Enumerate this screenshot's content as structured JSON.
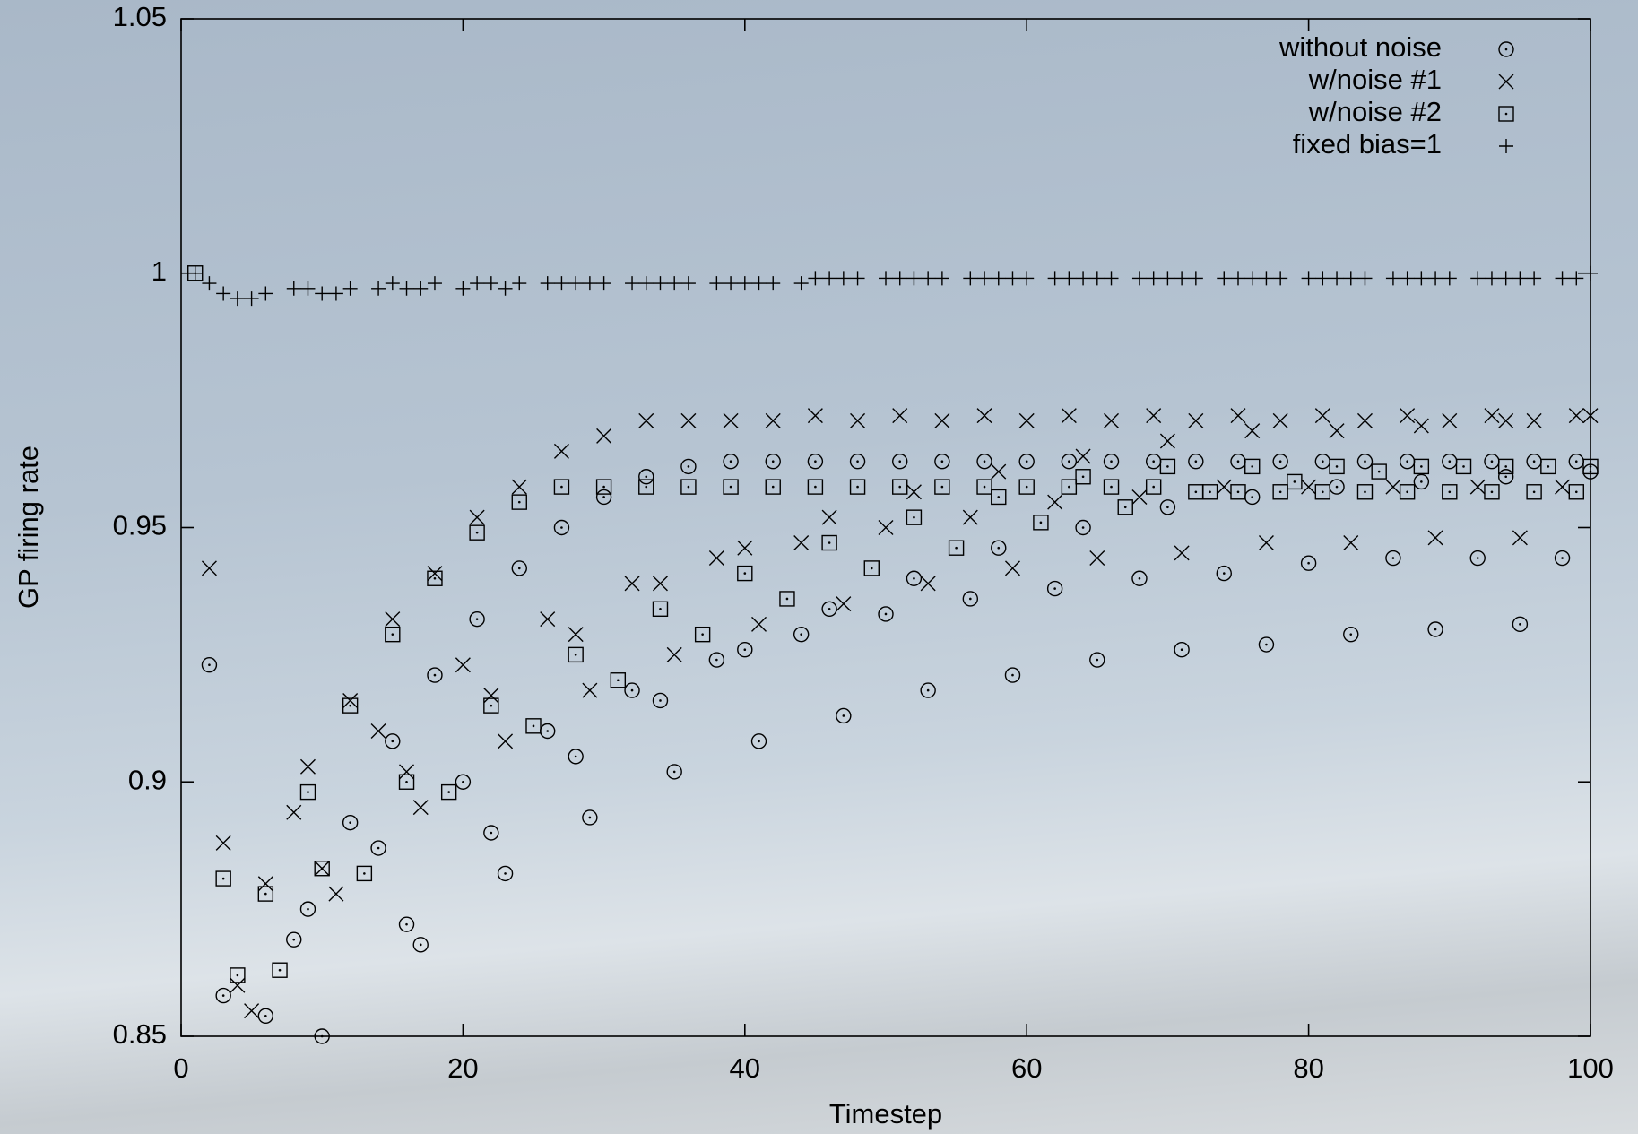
{
  "chart_data": {
    "type": "scatter",
    "xlabel": "Timestep",
    "ylabel": "GP firing rate",
    "xlim": [
      0,
      100
    ],
    "xticks": [
      0,
      20,
      40,
      60,
      80,
      100
    ],
    "ylim": [
      0.85,
      1.05
    ],
    "yticks": [
      0.85,
      0.9,
      0.95,
      1,
      1.05
    ],
    "legend_position": "upper right",
    "series": [
      {
        "name": "without noise",
        "color": "#000000",
        "marker": "circle",
        "x": [
          2,
          3,
          6,
          8,
          9,
          10,
          12,
          14,
          15,
          16,
          17,
          18,
          20,
          21,
          22,
          23,
          24,
          26,
          27,
          28,
          29,
          30,
          32,
          33,
          34,
          35,
          36,
          38,
          39,
          40,
          41,
          42,
          44,
          45,
          46,
          47,
          48,
          50,
          51,
          52,
          53,
          54,
          56,
          57,
          58,
          59,
          60,
          62,
          63,
          64,
          65,
          66,
          68,
          69,
          70,
          71,
          72,
          74,
          75,
          76,
          77,
          78,
          80,
          81,
          82,
          83,
          84,
          86,
          87,
          88,
          89,
          90,
          92,
          93,
          94,
          95,
          96,
          98,
          99,
          100
        ],
        "values": [
          0.923,
          0.858,
          0.854,
          0.869,
          0.875,
          0.85,
          0.892,
          0.887,
          0.908,
          0.872,
          0.868,
          0.921,
          0.9,
          0.932,
          0.89,
          0.882,
          0.942,
          0.91,
          0.95,
          0.905,
          0.893,
          0.956,
          0.918,
          0.96,
          0.916,
          0.902,
          0.962,
          0.924,
          0.963,
          0.926,
          0.908,
          0.963,
          0.929,
          0.963,
          0.934,
          0.913,
          0.963,
          0.933,
          0.963,
          0.94,
          0.918,
          0.963,
          0.936,
          0.963,
          0.946,
          0.921,
          0.963,
          0.938,
          0.963,
          0.95,
          0.924,
          0.963,
          0.94,
          0.963,
          0.954,
          0.926,
          0.963,
          0.941,
          0.963,
          0.956,
          0.927,
          0.963,
          0.943,
          0.963,
          0.958,
          0.929,
          0.963,
          0.944,
          0.963,
          0.959,
          0.93,
          0.963,
          0.944,
          0.963,
          0.96,
          0.931,
          0.963,
          0.944,
          0.963,
          0.961
        ]
      },
      {
        "name": "w/noise #1",
        "color": "#000000",
        "marker": "cross",
        "x": [
          2,
          3,
          4,
          5,
          6,
          8,
          9,
          10,
          11,
          12,
          14,
          15,
          16,
          17,
          18,
          20,
          21,
          22,
          23,
          24,
          26,
          27,
          28,
          29,
          30,
          32,
          33,
          34,
          35,
          36,
          38,
          39,
          40,
          41,
          42,
          44,
          45,
          46,
          47,
          48,
          50,
          51,
          52,
          53,
          54,
          56,
          57,
          58,
          59,
          60,
          62,
          63,
          64,
          65,
          66,
          68,
          69,
          70,
          71,
          72,
          74,
          75,
          76,
          77,
          78,
          80,
          81,
          82,
          83,
          84,
          86,
          87,
          88,
          89,
          90,
          92,
          93,
          94,
          95,
          96,
          98,
          99,
          100
        ],
        "values": [
          0.942,
          0.888,
          0.86,
          0.855,
          0.88,
          0.894,
          0.903,
          0.883,
          0.878,
          0.916,
          0.91,
          0.932,
          0.902,
          0.895,
          0.941,
          0.923,
          0.952,
          0.917,
          0.908,
          0.958,
          0.932,
          0.965,
          0.929,
          0.918,
          0.968,
          0.939,
          0.971,
          0.939,
          0.925,
          0.971,
          0.944,
          0.971,
          0.946,
          0.931,
          0.971,
          0.947,
          0.972,
          0.952,
          0.935,
          0.971,
          0.95,
          0.972,
          0.957,
          0.939,
          0.971,
          0.952,
          0.972,
          0.961,
          0.942,
          0.971,
          0.955,
          0.972,
          0.964,
          0.944,
          0.971,
          0.956,
          0.972,
          0.967,
          0.945,
          0.971,
          0.958,
          0.972,
          0.969,
          0.947,
          0.971,
          0.958,
          0.972,
          0.969,
          0.947,
          0.971,
          0.958,
          0.972,
          0.97,
          0.948,
          0.971,
          0.958,
          0.972,
          0.971,
          0.948,
          0.971,
          0.958,
          0.972,
          0.972
        ]
      },
      {
        "name": "w/noise #2",
        "color": "#000000",
        "marker": "square",
        "x": [
          1,
          3,
          4,
          6,
          7,
          9,
          10,
          12,
          13,
          15,
          16,
          18,
          19,
          21,
          22,
          24,
          25,
          27,
          28,
          30,
          31,
          33,
          34,
          36,
          37,
          39,
          40,
          42,
          43,
          45,
          46,
          48,
          49,
          51,
          52,
          54,
          55,
          57,
          58,
          60,
          61,
          63,
          64,
          66,
          67,
          69,
          70,
          72,
          73,
          75,
          76,
          78,
          79,
          81,
          82,
          84,
          85,
          87,
          88,
          90,
          91,
          93,
          94,
          96,
          97,
          99,
          100
        ],
        "values": [
          1.0,
          0.881,
          0.862,
          0.878,
          0.863,
          0.898,
          0.883,
          0.915,
          0.882,
          0.929,
          0.9,
          0.94,
          0.898,
          0.949,
          0.915,
          0.955,
          0.911,
          0.958,
          0.925,
          0.958,
          0.92,
          0.958,
          0.934,
          0.958,
          0.929,
          0.958,
          0.941,
          0.958,
          0.936,
          0.958,
          0.947,
          0.958,
          0.942,
          0.958,
          0.952,
          0.958,
          0.946,
          0.958,
          0.956,
          0.958,
          0.951,
          0.958,
          0.96,
          0.958,
          0.954,
          0.958,
          0.962,
          0.957,
          0.957,
          0.957,
          0.962,
          0.957,
          0.959,
          0.957,
          0.962,
          0.957,
          0.961,
          0.957,
          0.962,
          0.957,
          0.962,
          0.957,
          0.962,
          0.957,
          0.962,
          0.957,
          0.962
        ]
      },
      {
        "name": "fixed bias=1",
        "color": "#000000",
        "marker": "plus",
        "x": [
          1,
          2,
          3,
          4,
          5,
          6,
          8,
          9,
          10,
          11,
          12,
          14,
          15,
          16,
          17,
          18,
          20,
          21,
          22,
          23,
          24,
          26,
          27,
          28,
          29,
          30,
          32,
          33,
          34,
          35,
          36,
          38,
          39,
          40,
          41,
          42,
          44,
          45,
          46,
          47,
          48,
          50,
          51,
          52,
          53,
          54,
          56,
          57,
          58,
          59,
          60,
          62,
          63,
          64,
          65,
          66,
          68,
          69,
          70,
          71,
          72,
          74,
          75,
          76,
          77,
          78,
          80,
          81,
          82,
          83,
          84,
          86,
          87,
          88,
          89,
          90,
          92,
          93,
          94,
          95,
          96,
          98,
          99,
          100
        ],
        "values": [
          1.0,
          0.998,
          0.996,
          0.995,
          0.995,
          0.996,
          0.997,
          0.997,
          0.996,
          0.996,
          0.997,
          0.997,
          0.998,
          0.997,
          0.997,
          0.998,
          0.997,
          0.998,
          0.998,
          0.997,
          0.998,
          0.998,
          0.998,
          0.998,
          0.998,
          0.998,
          0.998,
          0.998,
          0.998,
          0.998,
          0.998,
          0.998,
          0.998,
          0.998,
          0.998,
          0.998,
          0.998,
          0.999,
          0.999,
          0.999,
          0.999,
          0.999,
          0.999,
          0.999,
          0.999,
          0.999,
          0.999,
          0.999,
          0.999,
          0.999,
          0.999,
          0.999,
          0.999,
          0.999,
          0.999,
          0.999,
          0.999,
          0.999,
          0.999,
          0.999,
          0.999,
          0.999,
          0.999,
          0.999,
          0.999,
          0.999,
          0.999,
          0.999,
          0.999,
          0.999,
          0.999,
          0.999,
          0.999,
          0.999,
          0.999,
          0.999,
          0.999,
          0.999,
          0.999,
          0.999,
          0.999,
          0.999,
          0.999,
          1.0
        ]
      }
    ]
  }
}
